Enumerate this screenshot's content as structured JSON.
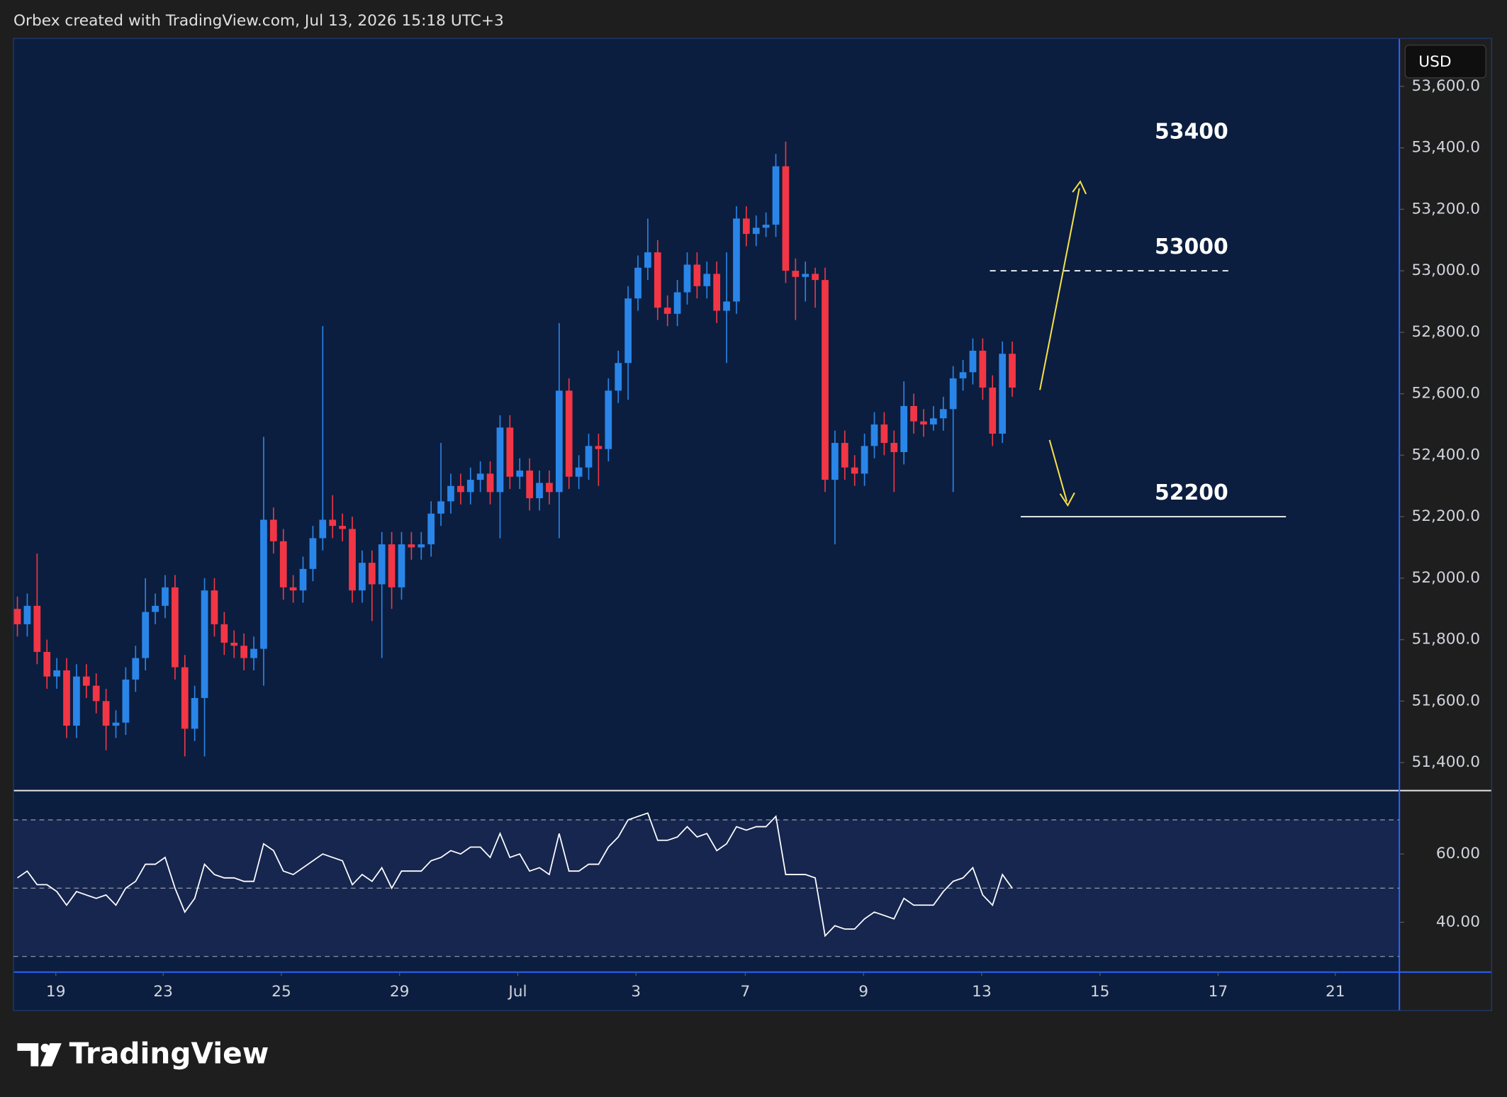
{
  "header": {
    "text": "Orbex created with TradingView.com, Jul 13, 2026 15:18 UTC+3"
  },
  "footer": {
    "logo": "TradingView"
  },
  "chart_data": {
    "type": "candlestick",
    "currency": "USD",
    "up_color": "#2a85e8",
    "down_color": "#f23645",
    "xlim": [
      -0.4,
      140.3
    ],
    "xticks": [
      {
        "value": 3.9,
        "label": "19"
      },
      {
        "value": 14.8,
        "label": "23"
      },
      {
        "value": 26.8,
        "label": "25"
      },
      {
        "value": 38.8,
        "label": "29"
      },
      {
        "value": 50.8,
        "label": "Jul"
      },
      {
        "value": 62.8,
        "label": "3"
      },
      {
        "value": 73.9,
        "label": "7"
      },
      {
        "value": 85.9,
        "label": "9"
      },
      {
        "value": 97.9,
        "label": "13"
      },
      {
        "value": 109.9,
        "label": "15"
      },
      {
        "value": 121.9,
        "label": "17"
      },
      {
        "value": 133.8,
        "label": "21"
      }
    ],
    "ylim": [
      51312,
      53756
    ],
    "yticks": [
      {
        "value": 51400,
        "label": "51,400.0"
      },
      {
        "value": 51600,
        "label": "51,600.0"
      },
      {
        "value": 51800,
        "label": "51,800.0"
      },
      {
        "value": 52000,
        "label": "52,000.0"
      },
      {
        "value": 52200,
        "label": "52,200.0"
      },
      {
        "value": 52400,
        "label": "52,400.0"
      },
      {
        "value": 52600,
        "label": "52,600.0"
      },
      {
        "value": 52800,
        "label": "52,800.0"
      },
      {
        "value": 53000,
        "label": "53,000.0"
      },
      {
        "value": 53200,
        "label": "53,200.0"
      },
      {
        "value": 53400,
        "label": "53,400.0"
      },
      {
        "value": 53600,
        "label": "53,600.0"
      }
    ],
    "open": [
      51900,
      51850,
      51910,
      51760,
      51680,
      51700,
      51520,
      51680,
      51650,
      51600,
      51520,
      51530,
      51670,
      51740,
      51890,
      51910,
      51970,
      51710,
      51510,
      51610,
      51960,
      51850,
      51790,
      51780,
      51740,
      51770,
      52190,
      52120,
      51970,
      51960,
      52030,
      52130,
      52190,
      52170,
      52160,
      51960,
      52050,
      51980,
      52110,
      51970,
      52110,
      52100,
      52110,
      52210,
      52250,
      52300,
      52280,
      52320,
      52340,
      52280,
      52490,
      52330,
      52350,
      52260,
      52310,
      52280,
      52610,
      52330,
      52360,
      52430,
      52420,
      52610,
      52700,
      52910,
      53010,
      53060,
      52880,
      52860,
      52930,
      53020,
      52950,
      52990,
      52870,
      52900,
      53170,
      53120,
      53140,
      53150,
      53340,
      53000,
      52980,
      52990,
      52970,
      52320,
      52440,
      52360,
      52340,
      52430,
      52500,
      52440,
      52410,
      52560,
      52510,
      52500,
      52520,
      52550,
      52650,
      52670,
      52740,
      52620,
      52470,
      52730
    ],
    "high": [
      51940,
      51950,
      52080,
      51800,
      51740,
      51740,
      51720,
      51720,
      51690,
      51640,
      51570,
      51710,
      51780,
      52000,
      51950,
      52010,
      52010,
      51750,
      51650,
      52000,
      52000,
      51890,
      51830,
      51820,
      51810,
      52460,
      52230,
      52160,
      52010,
      52070,
      52170,
      52820,
      52270,
      52210,
      52200,
      52090,
      52090,
      52150,
      52150,
      52150,
      52150,
      52150,
      52250,
      52440,
      52340,
      52340,
      52360,
      52380,
      52380,
      52530,
      52530,
      52390,
      52390,
      52350,
      52350,
      52830,
      52650,
      52400,
      52470,
      52470,
      52650,
      52740,
      52950,
      53050,
      53170,
      53100,
      52920,
      52970,
      53060,
      53060,
      53030,
      53030,
      53060,
      53210,
      53210,
      53180,
      53190,
      53380,
      53420,
      53040,
      53030,
      53010,
      53010,
      52480,
      52480,
      52400,
      52470,
      52540,
      52540,
      52480,
      52640,
      52600,
      52550,
      52560,
      52590,
      52690,
      52710,
      52780,
      52780,
      52660,
      52770,
      52770
    ],
    "low": [
      51810,
      51810,
      51720,
      51640,
      51640,
      51480,
      51480,
      51610,
      51560,
      51440,
      51480,
      51490,
      51630,
      51700,
      51850,
      51870,
      51670,
      51420,
      51470,
      51420,
      51810,
      51750,
      51740,
      51700,
      51700,
      51650,
      52080,
      51930,
      51920,
      51920,
      51990,
      52090,
      52130,
      52120,
      51920,
      51920,
      51860,
      51740,
      51900,
      51930,
      52060,
      52060,
      52070,
      52170,
      52210,
      52240,
      52240,
      52280,
      52240,
      52130,
      52290,
      52290,
      52220,
      52220,
      52240,
      52130,
      52290,
      52290,
      52320,
      52300,
      52380,
      52570,
      52580,
      52870,
      52970,
      52840,
      52820,
      52820,
      52890,
      52910,
      52910,
      52830,
      52700,
      52860,
      53080,
      53080,
      53110,
      53110,
      52960,
      52840,
      52900,
      52880,
      52280,
      52110,
      52320,
      52300,
      52300,
      52390,
      52400,
      52280,
      52370,
      52470,
      52460,
      52480,
      52480,
      52280,
      52610,
      52630,
      52580,
      52430,
      52440,
      52590
    ],
    "close": [
      51850,
      51910,
      51760,
      51680,
      51700,
      51520,
      51680,
      51650,
      51600,
      51520,
      51530,
      51670,
      51740,
      51890,
      51910,
      51970,
      51710,
      51510,
      51610,
      51960,
      51850,
      51790,
      51780,
      51740,
      51770,
      52190,
      52120,
      51970,
      51960,
      52030,
      52130,
      52190,
      52170,
      52160,
      51960,
      52050,
      51980,
      52110,
      51970,
      52110,
      52100,
      52110,
      52210,
      52250,
      52300,
      52280,
      52320,
      52340,
      52280,
      52490,
      52330,
      52350,
      52260,
      52310,
      52280,
      52610,
      52330,
      52360,
      52430,
      52420,
      52610,
      52700,
      52910,
      53010,
      53060,
      52880,
      52860,
      52930,
      53020,
      52950,
      52990,
      52870,
      52900,
      53170,
      53120,
      53140,
      53150,
      53340,
      53000,
      52980,
      52990,
      52970,
      52320,
      52440,
      52360,
      52340,
      52430,
      52500,
      52440,
      52410,
      52560,
      52510,
      52500,
      52520,
      52550,
      52650,
      52670,
      52740,
      52620,
      52470,
      52730,
      52620
    ],
    "annotations": [
      {
        "text": "53400",
        "value": 53400
      },
      {
        "text": "53000",
        "value": 53000,
        "line": "dashed"
      },
      {
        "text": "52200",
        "value": 52200,
        "line": "solid"
      }
    ],
    "indicator": {
      "type": "line",
      "color": "#ffffff",
      "ylim": [
        25.4,
        78.3
      ],
      "yticks": [
        {
          "value": 40,
          "label": "40.00"
        },
        {
          "value": 60,
          "label": "60.00"
        }
      ],
      "levels": [
        70,
        50,
        30
      ],
      "values": [
        53,
        55,
        51,
        51,
        49,
        45,
        49,
        48,
        47,
        48,
        45,
        50,
        52,
        57,
        57,
        59,
        50,
        43,
        47,
        57,
        54,
        53,
        53,
        52,
        52,
        63,
        61,
        55,
        54,
        56,
        58,
        60,
        59,
        58,
        51,
        54,
        52,
        56,
        50,
        55,
        55,
        55,
        58,
        59,
        61,
        60,
        62,
        62,
        59,
        66,
        59,
        60,
        55,
        56,
        54,
        66,
        55,
        55,
        57,
        57,
        62,
        65,
        70,
        71,
        72,
        64,
        64,
        65,
        68,
        65,
        66,
        61,
        63,
        68,
        67,
        68,
        68,
        71,
        54,
        54,
        54,
        53,
        36,
        39,
        38,
        38,
        41,
        43,
        42,
        41,
        47,
        45,
        45,
        45,
        49,
        52,
        53,
        56,
        48,
        45,
        54,
        50
      ]
    }
  }
}
